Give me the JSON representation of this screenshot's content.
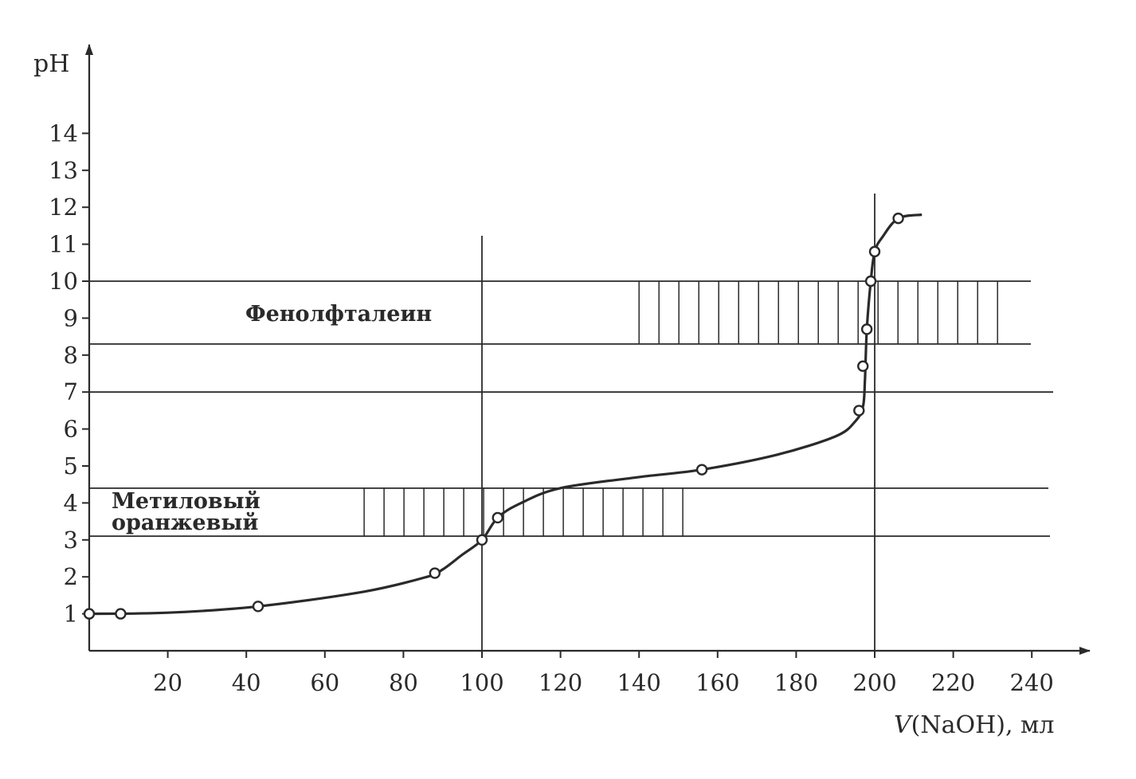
{
  "chart_data": {
    "type": "line",
    "xlabel_italic": "V",
    "xlabel_rest": "(NaOH), мл",
    "ylabel": "pH",
    "xlim": [
      0,
      250
    ],
    "ylim": [
      0,
      15
    ],
    "x_ticks": [
      20,
      40,
      60,
      80,
      100,
      120,
      140,
      160,
      180,
      200,
      220,
      240
    ],
    "y_ticks": [
      1,
      2,
      3,
      4,
      5,
      6,
      7,
      8,
      9,
      10,
      11,
      12,
      13,
      14
    ],
    "grid": false,
    "reference_lines": {
      "horizontal": [
        3.1,
        4.4,
        7,
        8.3,
        10
      ],
      "vertical": [
        100,
        200
      ]
    },
    "indicator_bands": [
      {
        "label": "Фенолфталеин",
        "ph_range": [
          8.3,
          10
        ],
        "hatched_v_range": [
          140,
          232
        ]
      },
      {
        "label_lines": [
          "Метиловый",
          "оранжевый"
        ],
        "ph_range": [
          3.1,
          4.4
        ],
        "hatched_v_range": [
          70,
          152
        ]
      }
    ],
    "series": [
      {
        "marker_points": [
          {
            "x": 0,
            "y": 1.0
          },
          {
            "x": 8,
            "y": 1.0
          },
          {
            "x": 43,
            "y": 1.2
          },
          {
            "x": 88,
            "y": 2.1
          },
          {
            "x": 100,
            "y": 3.0
          },
          {
            "x": 104,
            "y": 3.6
          },
          {
            "x": 156,
            "y": 4.9
          },
          {
            "x": 196,
            "y": 6.5
          },
          {
            "x": 197,
            "y": 7.7
          },
          {
            "x": 198,
            "y": 8.7
          },
          {
            "x": 199,
            "y": 10.0
          },
          {
            "x": 200,
            "y": 10.8
          },
          {
            "x": 206,
            "y": 11.7
          }
        ],
        "curve": [
          {
            "x": 0,
            "y": 1.0
          },
          {
            "x": 20,
            "y": 1.03
          },
          {
            "x": 43,
            "y": 1.2
          },
          {
            "x": 70,
            "y": 1.6
          },
          {
            "x": 86,
            "y": 2.0
          },
          {
            "x": 90,
            "y": 2.2
          },
          {
            "x": 95,
            "y": 2.6
          },
          {
            "x": 100,
            "y": 3.0
          },
          {
            "x": 104,
            "y": 3.6
          },
          {
            "x": 110,
            "y": 4.0
          },
          {
            "x": 120,
            "y": 4.4
          },
          {
            "x": 140,
            "y": 4.7
          },
          {
            "x": 156,
            "y": 4.9
          },
          {
            "x": 175,
            "y": 5.3
          },
          {
            "x": 190,
            "y": 5.8
          },
          {
            "x": 195,
            "y": 6.2
          },
          {
            "x": 197,
            "y": 6.6
          },
          {
            "x": 197.5,
            "y": 7.3
          },
          {
            "x": 198,
            "y": 8.7
          },
          {
            "x": 199,
            "y": 10.0
          },
          {
            "x": 200,
            "y": 10.8
          },
          {
            "x": 202,
            "y": 11.2
          },
          {
            "x": 206,
            "y": 11.7
          },
          {
            "x": 212,
            "y": 11.8
          }
        ]
      }
    ]
  }
}
